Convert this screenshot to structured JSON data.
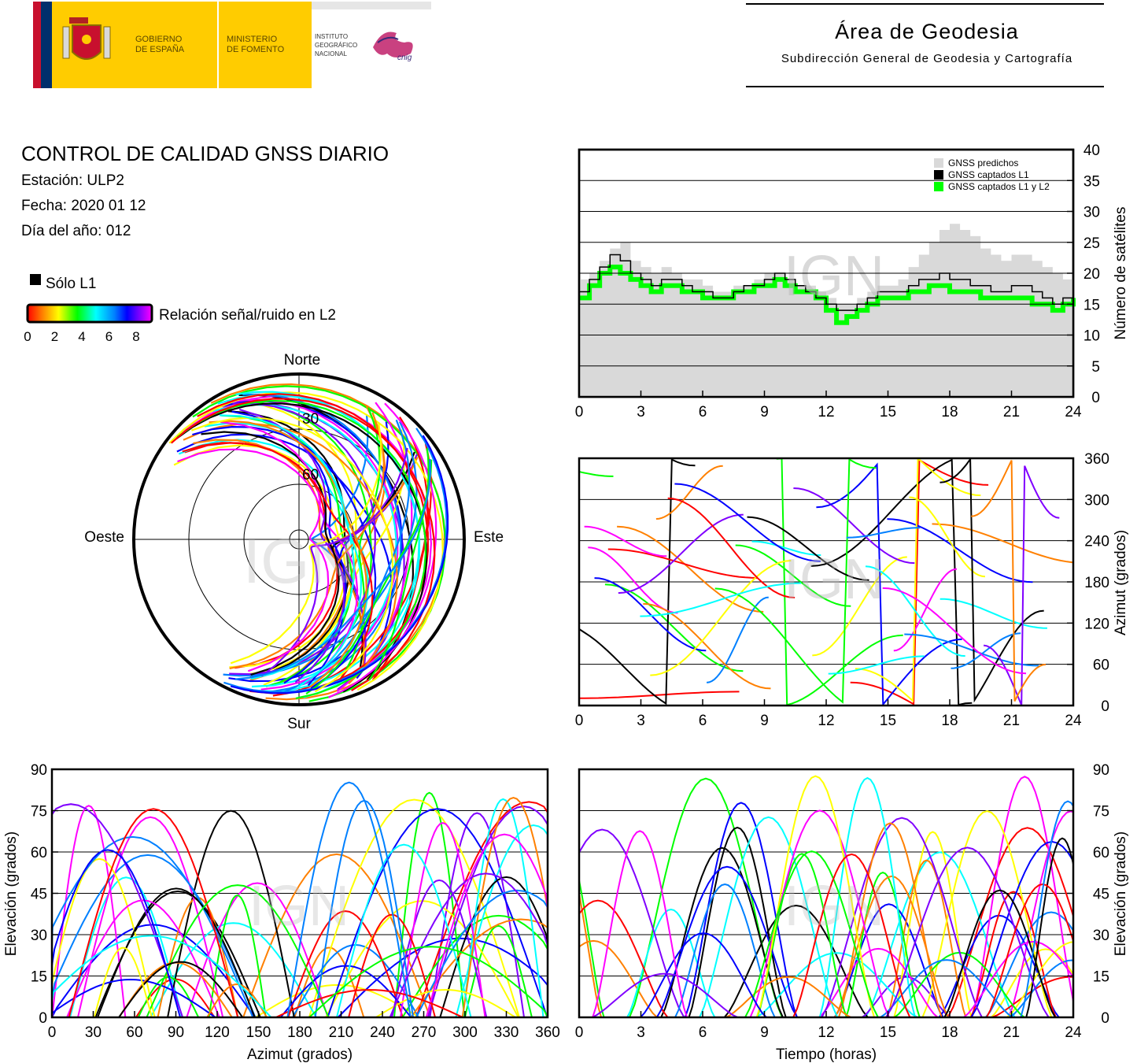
{
  "header": {
    "gov_line1": "GOBIERNO",
    "gov_line2": "DE ESPAÑA",
    "ministry_line1": "MINISTERIO",
    "ministry_line2": "DE FOMENTO",
    "institute_line1": "INSTITUTO",
    "institute_line2": "GEOGRÁFICO",
    "institute_line3": "NACIONAL",
    "cnig_label": "cnig",
    "area_title": "Área de Geodesia",
    "area_subtitle": "Subdirección General de Geodesia y Cartografía"
  },
  "report": {
    "title": "CONTROL DE CALIDAD GNSS DIARIO",
    "station": "Estación: ULP2",
    "date": "Fecha: 2020 01 12",
    "doy": "Día del año: 012"
  },
  "legend": {
    "l1_only": "Sólo L1",
    "snr_label": "Relación señal/ruido en L2",
    "snr_ticks": [
      "0",
      "2",
      "4",
      "6",
      "8"
    ],
    "snr_colors": [
      "#ff0000",
      "#ff8000",
      "#ffff00",
      "#00ff00",
      "#00ffff",
      "#0080ff",
      "#0000ff",
      "#8000ff",
      "#ff00ff"
    ]
  },
  "watermark": "IGN",
  "colors": {
    "predicted": "#d9d9d9",
    "l1": "#000000",
    "l1l2": "#00ff00"
  },
  "chart_data": [
    {
      "type": "area",
      "id": "satellites",
      "ylabel": "Número de satélites",
      "ylim": [
        0,
        40
      ],
      "xlim": [
        0,
        24
      ],
      "yticks": [
        "0",
        "5",
        "10",
        "15",
        "20",
        "25",
        "30",
        "35",
        "40"
      ],
      "xticks": [
        "0",
        "3",
        "6",
        "9",
        "12",
        "15",
        "18",
        "21",
        "24"
      ],
      "legend": [
        "GNSS predichos",
        "GNSS captados L1",
        "GNSS captados L1 y L2"
      ],
      "legend_position": "top-right",
      "grid": true,
      "x": [
        0,
        0.5,
        1,
        1.5,
        2,
        2.5,
        3,
        3.5,
        4,
        4.5,
        5,
        5.5,
        6,
        6.5,
        7,
        7.5,
        8,
        8.5,
        9,
        9.5,
        10,
        10.5,
        11,
        11.5,
        12,
        12.5,
        13,
        13.5,
        14,
        14.5,
        15,
        15.5,
        16,
        16.5,
        17,
        17.5,
        18,
        18.5,
        19,
        19.5,
        20,
        20.5,
        21,
        21.5,
        22,
        22.5,
        23,
        23.5,
        24
      ],
      "series": [
        {
          "name": "GNSS predichos",
          "values": [
            19,
            20,
            22,
            24,
            25,
            22,
            21,
            20,
            21,
            20,
            19,
            19,
            18,
            17,
            17,
            18,
            18,
            19,
            20,
            20,
            19,
            18,
            18,
            17,
            16,
            15,
            15,
            16,
            17,
            18,
            18,
            19,
            21,
            23,
            25,
            27,
            28,
            27,
            26,
            24,
            23,
            22,
            23,
            23,
            22,
            21,
            20,
            19,
            20
          ]
        },
        {
          "name": "GNSS captados L1",
          "values": [
            17,
            19,
            21,
            23,
            22,
            20,
            19,
            18,
            19,
            19,
            18,
            17,
            17,
            16,
            16,
            17,
            18,
            18,
            19,
            20,
            19,
            18,
            17,
            16,
            15,
            14,
            14,
            15,
            16,
            17,
            17,
            17,
            18,
            19,
            19,
            20,
            19,
            19,
            18,
            18,
            17,
            17,
            18,
            18,
            17,
            16,
            15,
            16,
            17
          ]
        },
        {
          "name": "GNSS captados L1 y L2",
          "values": [
            16,
            18,
            20,
            21,
            20,
            19,
            18,
            17,
            18,
            18,
            17,
            17,
            16,
            16,
            16,
            17,
            17,
            18,
            18,
            19,
            18,
            17,
            17,
            16,
            14,
            12,
            13,
            14,
            15,
            16,
            16,
            16,
            17,
            17,
            18,
            18,
            17,
            17,
            17,
            16,
            16,
            16,
            16,
            16,
            15,
            15,
            14,
            15,
            16
          ]
        }
      ]
    },
    {
      "type": "scatter",
      "id": "azimuth",
      "ylabel": "Azimut (grados)",
      "ylim": [
        0,
        360
      ],
      "xlim": [
        0,
        24
      ],
      "yticks": [
        "0",
        "60",
        "120",
        "180",
        "240",
        "300",
        "360"
      ],
      "xticks": [
        "0",
        "3",
        "6",
        "9",
        "12",
        "15",
        "18",
        "21",
        "24"
      ],
      "grid": true
    },
    {
      "type": "scatter",
      "id": "skyplot",
      "direction_labels": [
        "Norte",
        "Sur",
        "Este",
        "Oeste"
      ],
      "ring_labels": [
        "30",
        "60"
      ],
      "grid": true
    },
    {
      "type": "scatter",
      "id": "elev_vs_az",
      "xlabel": "Azimut (grados)",
      "ylabel": "Elevación (grados)",
      "xlim": [
        0,
        360
      ],
      "ylim": [
        0,
        90
      ],
      "xticks": [
        "0",
        "30",
        "60",
        "90",
        "120",
        "150",
        "180",
        "210",
        "240",
        "270",
        "300",
        "330",
        "360"
      ],
      "yticks": [
        "0",
        "15",
        "30",
        "45",
        "60",
        "75",
        "90"
      ],
      "grid": true
    },
    {
      "type": "scatter",
      "id": "elev_vs_time",
      "xlabel": "Tiempo (horas)",
      "ylabel": "Elevación (grados)",
      "xlim": [
        0,
        24
      ],
      "ylim": [
        0,
        90
      ],
      "xticks": [
        "0",
        "3",
        "6",
        "9",
        "12",
        "15",
        "18",
        "21",
        "24"
      ],
      "yticks": [
        "0",
        "15",
        "30",
        "45",
        "60",
        "75",
        "90"
      ],
      "grid": true
    }
  ]
}
